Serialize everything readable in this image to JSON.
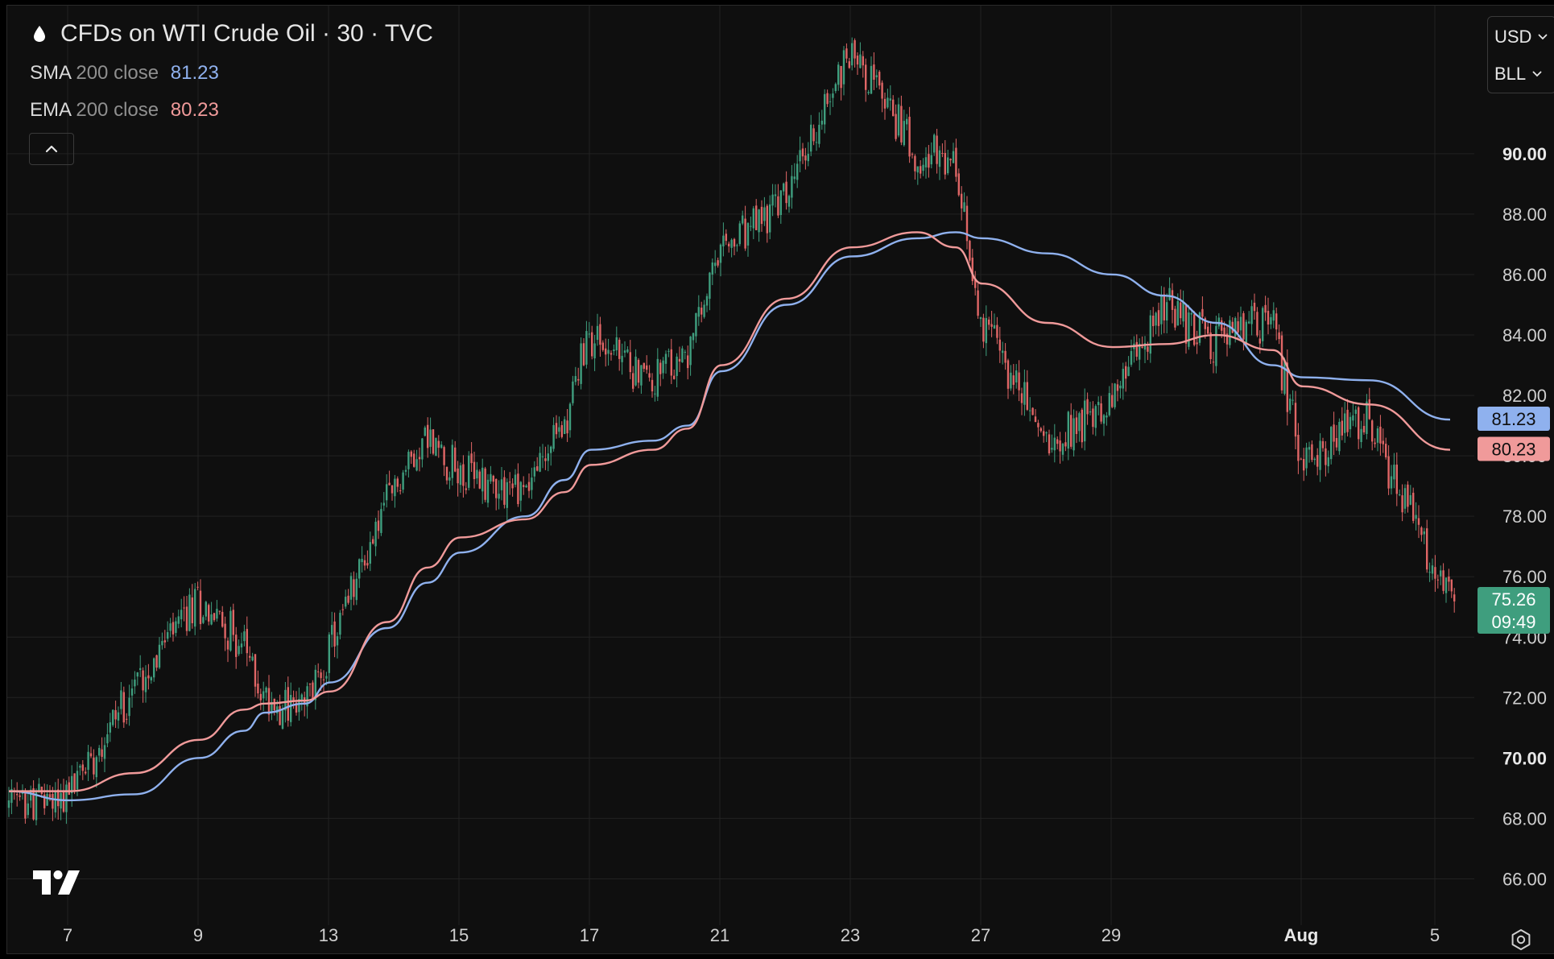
{
  "header": {
    "title": "CFDs on WTI Crude Oil · 30 · TVC",
    "symbol_icon": "droplet-icon"
  },
  "indicators": [
    {
      "name": "SMA",
      "params": "200 close",
      "value": "81.23",
      "color": "#8fb1ee"
    },
    {
      "name": "EMA",
      "params": "200 close",
      "value": "80.23",
      "color": "#f09a9a"
    }
  ],
  "controls": {
    "collapse_icon": "chevron-up-icon",
    "currency": "USD",
    "unit": "BLL",
    "settings_icon": "gear-icon",
    "logo_icon": "tradingview-logo-icon"
  },
  "colors": {
    "background": "#0f0f0f",
    "grid": "#222222",
    "up": "#3f9e7e",
    "down": "#e06666",
    "sma": "#8fb1ee",
    "ema": "#f09a9a",
    "last_price_bg": "#3f9e7e"
  },
  "chart_data": {
    "type": "candlestick",
    "interval": "30",
    "x_ticks": [
      "7",
      "9",
      "13",
      "15",
      "17",
      "21",
      "23",
      "27",
      "29",
      "Aug",
      "5"
    ],
    "y_ticks": [
      "66.00",
      "68.00",
      "70.00",
      "72.00",
      "74.00",
      "76.00",
      "78.00",
      "80.00",
      "82.00",
      "84.00",
      "86.00",
      "88.00",
      "90.00"
    ],
    "ylim": [
      64.2,
      94.9
    ],
    "grid": true,
    "price_path": [
      {
        "x": "6",
        "y": 68.4
      },
      {
        "x": "7",
        "y": 68.8
      },
      {
        "x": "8",
        "y": 72.4
      },
      {
        "x": "9",
        "y": 75.2
      },
      {
        "x": "10",
        "y": 73.8
      },
      {
        "x": "11",
        "y": 72.0
      },
      {
        "x": "12",
        "y": 71.6
      },
      {
        "x": "13",
        "y": 73.5
      },
      {
        "x": "14",
        "y": 78.4
      },
      {
        "x": "15",
        "y": 80.7
      },
      {
        "x": "16",
        "y": 79.4
      },
      {
        "x": "17",
        "y": 78.9
      },
      {
        "x": "18",
        "y": 81.0
      },
      {
        "x": "19",
        "y": 84.0
      },
      {
        "x": "20",
        "y": 82.5
      },
      {
        "x": "21",
        "y": 83.2
      },
      {
        "x": "22",
        "y": 86.6
      },
      {
        "x": "23",
        "y": 88.5
      },
      {
        "x": "24",
        "y": 93.5
      },
      {
        "x": "25",
        "y": 90.2
      },
      {
        "x": "26",
        "y": 89.5
      },
      {
        "x": "27",
        "y": 84.6
      },
      {
        "x": "28",
        "y": 80.5
      },
      {
        "x": "29",
        "y": 81.8
      },
      {
        "x": "30",
        "y": 85.0
      },
      {
        "x": "31",
        "y": 83.8
      },
      {
        "x": "Aug 1",
        "y": 84.6
      },
      {
        "x": "Aug 2",
        "y": 79.8
      },
      {
        "x": "Aug 4",
        "y": 81.2
      },
      {
        "x": "Aug 5",
        "y": 75.26
      }
    ],
    "series": [
      {
        "name": "SMA 200 close",
        "points": [
          {
            "x": "6",
            "y": 68.9
          },
          {
            "x": "7",
            "y": 68.6
          },
          {
            "x": "8",
            "y": 68.8
          },
          {
            "x": "9",
            "y": 70.0
          },
          {
            "x": "10",
            "y": 70.9
          },
          {
            "x": "11",
            "y": 71.5
          },
          {
            "x": "12",
            "y": 71.8
          },
          {
            "x": "13",
            "y": 72.5
          },
          {
            "x": "14",
            "y": 74.3
          },
          {
            "x": "15",
            "y": 75.8
          },
          {
            "x": "16",
            "y": 76.8
          },
          {
            "x": "17",
            "y": 78.0
          },
          {
            "x": "18",
            "y": 79.2
          },
          {
            "x": "19",
            "y": 80.2
          },
          {
            "x": "20",
            "y": 80.5
          },
          {
            "x": "21",
            "y": 81.0
          },
          {
            "x": "22",
            "y": 82.8
          },
          {
            "x": "23",
            "y": 85.0
          },
          {
            "x": "24",
            "y": 86.6
          },
          {
            "x": "25",
            "y": 87.2
          },
          {
            "x": "26",
            "y": 87.4
          },
          {
            "x": "27",
            "y": 87.2
          },
          {
            "x": "28",
            "y": 86.7
          },
          {
            "x": "29",
            "y": 86.0
          },
          {
            "x": "30",
            "y": 85.3
          },
          {
            "x": "31",
            "y": 84.4
          },
          {
            "x": "Aug 1",
            "y": 83.0
          },
          {
            "x": "Aug 2",
            "y": 82.6
          },
          {
            "x": "Aug 4",
            "y": 82.5
          },
          {
            "x": "Aug 5",
            "y": 81.2
          }
        ]
      },
      {
        "name": "EMA 200 close",
        "points": [
          {
            "x": "6",
            "y": 68.9
          },
          {
            "x": "7",
            "y": 68.9
          },
          {
            "x": "8",
            "y": 69.5
          },
          {
            "x": "9",
            "y": 70.6
          },
          {
            "x": "10",
            "y": 71.6
          },
          {
            "x": "11",
            "y": 71.8
          },
          {
            "x": "12",
            "y": 71.9
          },
          {
            "x": "13",
            "y": 72.2
          },
          {
            "x": "14",
            "y": 74.5
          },
          {
            "x": "15",
            "y": 76.3
          },
          {
            "x": "16",
            "y": 77.3
          },
          {
            "x": "17",
            "y": 77.9
          },
          {
            "x": "18",
            "y": 78.8
          },
          {
            "x": "19",
            "y": 79.7
          },
          {
            "x": "20",
            "y": 80.2
          },
          {
            "x": "21",
            "y": 80.9
          },
          {
            "x": "22",
            "y": 83.0
          },
          {
            "x": "23",
            "y": 85.2
          },
          {
            "x": "24",
            "y": 86.9
          },
          {
            "x": "25",
            "y": 87.4
          },
          {
            "x": "26",
            "y": 86.9
          },
          {
            "x": "27",
            "y": 85.7
          },
          {
            "x": "28",
            "y": 84.4
          },
          {
            "x": "29",
            "y": 83.6
          },
          {
            "x": "30",
            "y": 83.7
          },
          {
            "x": "31",
            "y": 84.0
          },
          {
            "x": "Aug 1",
            "y": 83.5
          },
          {
            "x": "Aug 2",
            "y": 82.3
          },
          {
            "x": "Aug 4",
            "y": 81.7
          },
          {
            "x": "Aug 5",
            "y": 80.2
          }
        ]
      }
    ],
    "last_price": {
      "value": "75.26",
      "countdown": "09:49"
    },
    "sma_last": "81.23",
    "ema_last": "80.23"
  }
}
